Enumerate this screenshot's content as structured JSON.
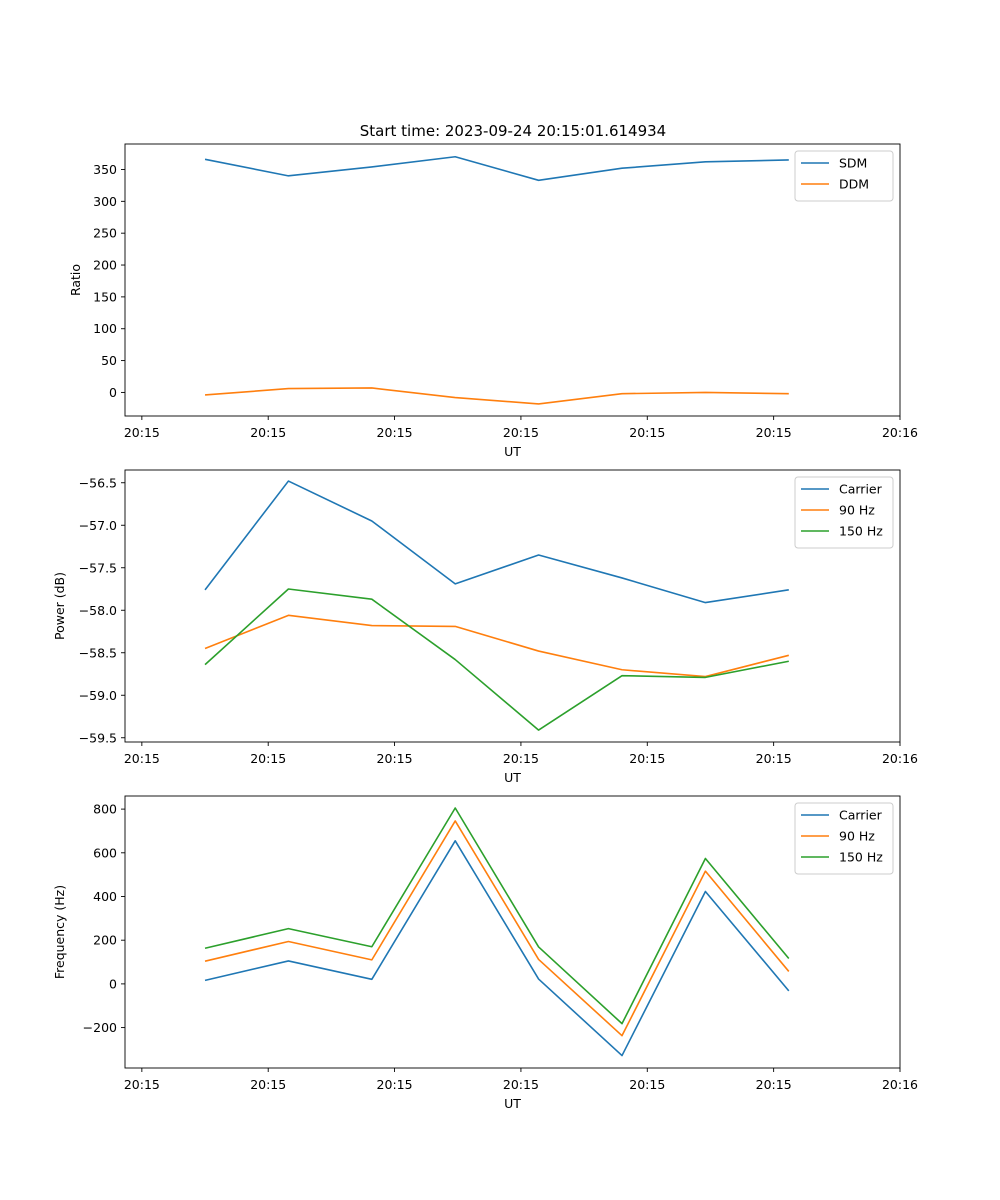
{
  "figure": {
    "title": "Start time: 2023-09-24 20:15:01.614934"
  },
  "colors": {
    "c0": "#1f77b4",
    "c1": "#ff7f0e",
    "c2": "#2ca02c"
  },
  "chart_data": [
    {
      "type": "line",
      "title": "Start time: 2023-09-24 20:15:01.614934",
      "xlabel": "UT",
      "ylabel": "Ratio",
      "x_tick_labels": [
        "20:15",
        "20:15",
        "20:15",
        "20:15",
        "20:15",
        "20:15",
        "20:16"
      ],
      "x_tick_values": [
        0,
        1.5,
        3,
        4.5,
        6,
        7.5,
        9
      ],
      "xlim": [
        -0.2,
        9.0
      ],
      "ylim": [
        -37,
        390
      ],
      "yticks": [
        0,
        50,
        100,
        150,
        200,
        250,
        300,
        350
      ],
      "legend_position": "top-right",
      "x": [
        0.75,
        1.74,
        2.73,
        3.72,
        4.71,
        5.7,
        6.69,
        7.68
      ],
      "series": [
        {
          "name": "SDM",
          "color": "#1f77b4",
          "values": [
            366,
            340,
            354,
            370,
            333,
            352,
            362,
            365
          ]
        },
        {
          "name": "DDM",
          "color": "#ff7f0e",
          "values": [
            -4,
            6,
            7,
            -8,
            -18,
            -2,
            0,
            -2
          ]
        }
      ]
    },
    {
      "type": "line",
      "title": "",
      "xlabel": "UT",
      "ylabel": "Power (dB)",
      "x_tick_labels": [
        "20:15",
        "20:15",
        "20:15",
        "20:15",
        "20:15",
        "20:15",
        "20:16"
      ],
      "x_tick_values": [
        0,
        1.5,
        3,
        4.5,
        6,
        7.5,
        9
      ],
      "xlim": [
        -0.2,
        9.0
      ],
      "ylim": [
        -59.55,
        -56.35
      ],
      "yticks": [
        -59.5,
        -59.0,
        -58.5,
        -58.0,
        -57.5,
        -57.0,
        -56.5
      ],
      "ytick_labels": [
        "−59.5",
        "−59.0",
        "−58.5",
        "−58.0",
        "−57.5",
        "−57.0",
        "−56.5"
      ],
      "legend_position": "top-right",
      "x": [
        0.75,
        1.74,
        2.73,
        3.72,
        4.71,
        5.7,
        6.69,
        7.68
      ],
      "series": [
        {
          "name": "Carrier",
          "color": "#1f77b4",
          "values": [
            -57.76,
            -56.48,
            -56.95,
            -57.69,
            -57.35,
            -57.62,
            -57.91,
            -57.76
          ]
        },
        {
          "name": "90 Hz",
          "color": "#ff7f0e",
          "values": [
            -58.45,
            -58.06,
            -58.18,
            -58.19,
            -58.48,
            -58.7,
            -58.78,
            -58.53
          ]
        },
        {
          "name": "150 Hz",
          "color": "#2ca02c",
          "values": [
            -58.64,
            -57.75,
            -57.87,
            -58.58,
            -59.41,
            -58.77,
            -58.79,
            -58.6
          ]
        }
      ]
    },
    {
      "type": "line",
      "title": "",
      "xlabel": "UT",
      "ylabel": "Frequency (Hz)",
      "x_tick_labels": [
        "20:15",
        "20:15",
        "20:15",
        "20:15",
        "20:15",
        "20:15",
        "20:16"
      ],
      "x_tick_values": [
        0,
        1.5,
        3,
        4.5,
        6,
        7.5,
        9
      ],
      "xlim": [
        -0.2,
        9.0
      ],
      "ylim": [
        -385,
        860
      ],
      "yticks": [
        -200,
        0,
        200,
        400,
        600,
        800
      ],
      "ytick_labels": [
        "−200",
        "0",
        "200",
        "400",
        "600",
        "800"
      ],
      "legend_position": "top-right",
      "x": [
        0.75,
        1.74,
        2.73,
        3.72,
        4.71,
        5.7,
        6.69,
        7.68
      ],
      "series": [
        {
          "name": "Carrier",
          "color": "#1f77b4",
          "values": [
            16,
            105,
            21,
            655,
            22,
            -328,
            423,
            -32
          ]
        },
        {
          "name": "90 Hz",
          "color": "#ff7f0e",
          "values": [
            104,
            194,
            110,
            746,
            112,
            -237,
            516,
            57
          ]
        },
        {
          "name": "150 Hz",
          "color": "#2ca02c",
          "values": [
            163,
            253,
            170,
            805,
            169,
            -182,
            574,
            116
          ]
        }
      ]
    }
  ]
}
